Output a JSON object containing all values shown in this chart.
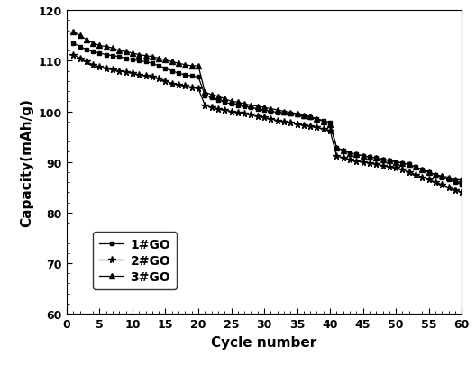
{
  "title": "",
  "xlabel": "Cycle number",
  "ylabel": "Capacity(mAh/g)",
  "xlim": [
    0,
    60
  ],
  "ylim": [
    60,
    120
  ],
  "xticks": [
    0,
    5,
    10,
    15,
    20,
    25,
    30,
    35,
    40,
    45,
    50,
    55,
    60
  ],
  "yticks": [
    60,
    70,
    80,
    90,
    100,
    110,
    120
  ],
  "series": [
    {
      "label": "1#GO",
      "marker": "s",
      "color": "#000000",
      "x": [
        1,
        2,
        3,
        4,
        5,
        6,
        7,
        8,
        9,
        10,
        11,
        12,
        13,
        14,
        15,
        16,
        17,
        18,
        19,
        20,
        21,
        22,
        23,
        24,
        25,
        26,
        27,
        28,
        29,
        30,
        31,
        32,
        33,
        34,
        35,
        36,
        37,
        38,
        39,
        40,
        41,
        42,
        43,
        44,
        45,
        46,
        47,
        48,
        49,
        50,
        51,
        52,
        53,
        54,
        55,
        56,
        57,
        58,
        59,
        60
      ],
      "y": [
        113.5,
        112.8,
        112.2,
        111.8,
        111.5,
        111.2,
        111.0,
        110.8,
        110.5,
        110.2,
        110.0,
        109.8,
        109.5,
        109.0,
        108.5,
        108.0,
        107.5,
        107.2,
        107.0,
        106.8,
        103.2,
        102.8,
        102.3,
        101.8,
        101.5,
        101.2,
        101.0,
        100.8,
        100.5,
        100.3,
        100.0,
        99.8,
        99.7,
        99.5,
        99.3,
        99.0,
        98.8,
        98.5,
        98.2,
        97.8,
        92.8,
        92.3,
        91.8,
        91.5,
        91.2,
        91.0,
        90.8,
        90.5,
        90.3,
        90.0,
        89.8,
        89.5,
        89.0,
        88.5,
        88.0,
        87.5,
        87.0,
        86.5,
        86.0,
        85.5
      ]
    },
    {
      "label": "2#GO",
      "marker": "*",
      "color": "#000000",
      "x": [
        1,
        2,
        3,
        4,
        5,
        6,
        7,
        8,
        9,
        10,
        11,
        12,
        13,
        14,
        15,
        16,
        17,
        18,
        19,
        20,
        21,
        22,
        23,
        24,
        25,
        26,
        27,
        28,
        29,
        30,
        31,
        32,
        33,
        34,
        35,
        36,
        37,
        38,
        39,
        40,
        41,
        42,
        43,
        44,
        45,
        46,
        47,
        48,
        49,
        50,
        51,
        52,
        53,
        54,
        55,
        56,
        57,
        58,
        59,
        60
      ],
      "y": [
        111.2,
        110.5,
        109.8,
        109.2,
        108.8,
        108.5,
        108.2,
        108.0,
        107.8,
        107.5,
        107.2,
        107.0,
        106.8,
        106.5,
        106.0,
        105.5,
        105.2,
        105.0,
        104.8,
        104.5,
        101.2,
        100.8,
        100.5,
        100.2,
        100.0,
        99.8,
        99.5,
        99.3,
        99.0,
        98.8,
        98.5,
        98.2,
        98.0,
        97.8,
        97.5,
        97.2,
        97.0,
        96.8,
        96.5,
        96.2,
        91.2,
        90.8,
        90.5,
        90.2,
        90.0,
        89.8,
        89.5,
        89.3,
        89.0,
        88.8,
        88.5,
        88.0,
        87.5,
        87.0,
        86.5,
        86.0,
        85.5,
        85.0,
        84.5,
        84.0
      ]
    },
    {
      "label": "3#GO",
      "marker": "^",
      "color": "#000000",
      "x": [
        1,
        2,
        3,
        4,
        5,
        6,
        7,
        8,
        9,
        10,
        11,
        12,
        13,
        14,
        15,
        16,
        17,
        18,
        19,
        20,
        21,
        22,
        23,
        24,
        25,
        26,
        27,
        28,
        29,
        30,
        31,
        32,
        33,
        34,
        35,
        36,
        37,
        38,
        39,
        40,
        41,
        42,
        43,
        44,
        45,
        46,
        47,
        48,
        49,
        50,
        51,
        52,
        53,
        54,
        55,
        56,
        57,
        58,
        59,
        60
      ],
      "y": [
        115.8,
        115.0,
        114.2,
        113.5,
        113.0,
        112.8,
        112.5,
        112.0,
        111.8,
        111.5,
        111.2,
        111.0,
        110.8,
        110.5,
        110.2,
        109.8,
        109.5,
        109.2,
        109.0,
        109.0,
        103.8,
        103.3,
        103.0,
        102.5,
        102.0,
        101.8,
        101.5,
        101.2,
        101.0,
        100.8,
        100.5,
        100.3,
        100.0,
        99.8,
        99.5,
        99.2,
        99.0,
        98.5,
        98.0,
        97.5,
        92.8,
        92.3,
        91.8,
        91.5,
        91.2,
        91.0,
        90.8,
        90.5,
        90.3,
        90.0,
        89.8,
        89.5,
        89.0,
        88.5,
        88.0,
        87.5,
        87.2,
        87.0,
        86.5,
        86.5
      ]
    }
  ],
  "markersize_s": 3.5,
  "markersize_star": 5.5,
  "markersize_tri": 4.5,
  "linewidth": 0.9,
  "background_color": "#ffffff",
  "font_color": "#000000",
  "xlabel_fontsize": 11,
  "ylabel_fontsize": 11,
  "tick_labelsize": 9,
  "legend_fontsize": 10
}
